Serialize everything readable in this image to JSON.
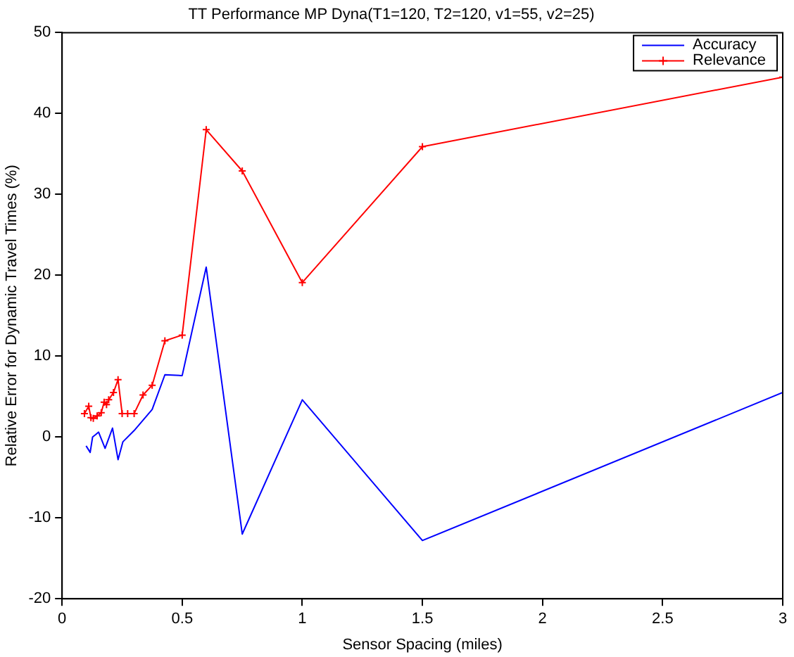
{
  "chart_data": {
    "type": "line",
    "title": "TT Performance MP Dyna(T1=120, T2=120, v1=55, v2=25)",
    "xlabel": "Sensor Spacing (miles)",
    "ylabel": "Relative Error for Dynamic Travel Times (%)",
    "xlim": [
      0,
      3
    ],
    "xticks": [
      0,
      0.5,
      1,
      1.5,
      2,
      2.5,
      3
    ],
    "ylim": [
      -20,
      50
    ],
    "yticks": [
      -20,
      -10,
      0,
      10,
      20,
      30,
      40,
      50
    ],
    "grid": false,
    "legend": "top right",
    "series": [
      {
        "name": "Accuracy",
        "color": "#0000ff",
        "marker": "none",
        "x": [
          0.1,
          0.117,
          0.127,
          0.14,
          0.152,
          0.179,
          0.21,
          0.233,
          0.253,
          0.3,
          0.375,
          0.428,
          0.5,
          0.6,
          0.75,
          1,
          1.5,
          3
        ],
        "values": [
          -1.1,
          -1.9,
          0,
          0.3,
          0.6,
          -1.4,
          1.1,
          -2.8,
          -0.6,
          0.8,
          3.4,
          7.7,
          7.6,
          21,
          -12,
          4.6,
          -12.8,
          5.5
        ]
      },
      {
        "name": "Relevance",
        "color": "#ff0000",
        "marker": "cross",
        "x": [
          0.093,
          0.111,
          0.12,
          0.13,
          0.146,
          0.163,
          0.175,
          0.185,
          0.194,
          0.214,
          0.233,
          0.25,
          0.273,
          0.3,
          0.337,
          0.375,
          0.428,
          0.5,
          0.6,
          0.75,
          1,
          1.5,
          3
        ],
        "values": [
          2.9,
          3.8,
          2.4,
          2.3,
          2.6,
          3,
          4.3,
          4,
          4.6,
          5.5,
          7.1,
          2.9,
          2.9,
          2.9,
          5.2,
          6.4,
          11.9,
          12.6,
          38,
          32.9,
          19.1,
          35.9,
          44.5
        ]
      }
    ]
  }
}
